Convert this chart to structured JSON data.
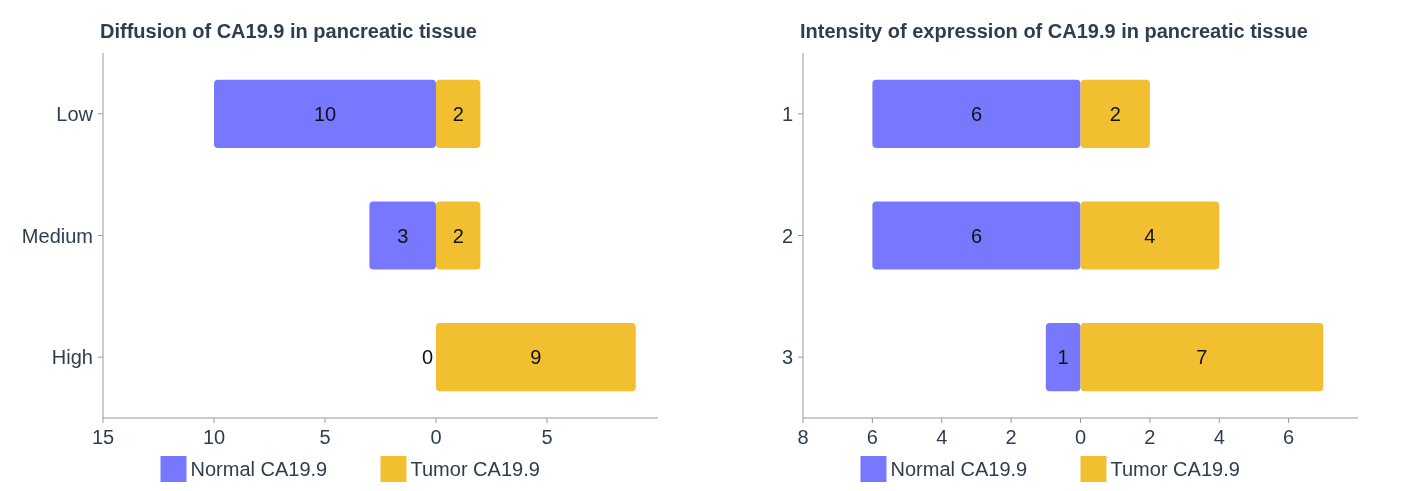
{
  "chart_data": [
    {
      "type": "bar",
      "title": "Diffusion of CA19.9 in pancreatic tissue",
      "orientation": "horizontal",
      "categories": [
        "Low",
        "Medium",
        "High"
      ],
      "xlim": [
        -15,
        10
      ],
      "xticks": [
        {
          "value": -15,
          "label": "15"
        },
        {
          "value": -10,
          "label": "10"
        },
        {
          "value": -5,
          "label": "5"
        },
        0,
        5
      ],
      "legend": "bottom",
      "data_labels": true,
      "series": [
        {
          "name": "Normal CA19.9",
          "color": "#7878ff",
          "values": [
            10,
            3,
            0
          ],
          "base": [
            -10,
            -3,
            null
          ]
        },
        {
          "name": "Tumor CA19.9",
          "color": "#f2bf30",
          "values": [
            2,
            2,
            9
          ],
          "base": [
            0,
            0,
            0
          ]
        }
      ]
    },
    {
      "type": "bar",
      "title": "Intensity of expression of CA19.9 in pancreatic tissue",
      "orientation": "horizontal",
      "categories": [
        "1",
        "2",
        "3"
      ],
      "xlim": [
        -8,
        8
      ],
      "xticks": [
        {
          "value": -8,
          "label": "8"
        },
        {
          "value": -6,
          "label": "6"
        },
        {
          "value": -4,
          "label": "4"
        },
        {
          "value": -2,
          "label": "2"
        },
        0,
        2,
        4,
        6
      ],
      "legend": "bottom",
      "data_labels": true,
      "series": [
        {
          "name": "Normal CA19.9",
          "color": "#7878ff",
          "values": [
            6,
            6,
            1
          ],
          "base": [
            -6,
            -6,
            -1
          ]
        },
        {
          "name": "Tumor CA19.9",
          "color": "#f2bf30",
          "values": [
            2,
            4,
            7
          ],
          "base": [
            0,
            0,
            0
          ]
        }
      ]
    }
  ]
}
